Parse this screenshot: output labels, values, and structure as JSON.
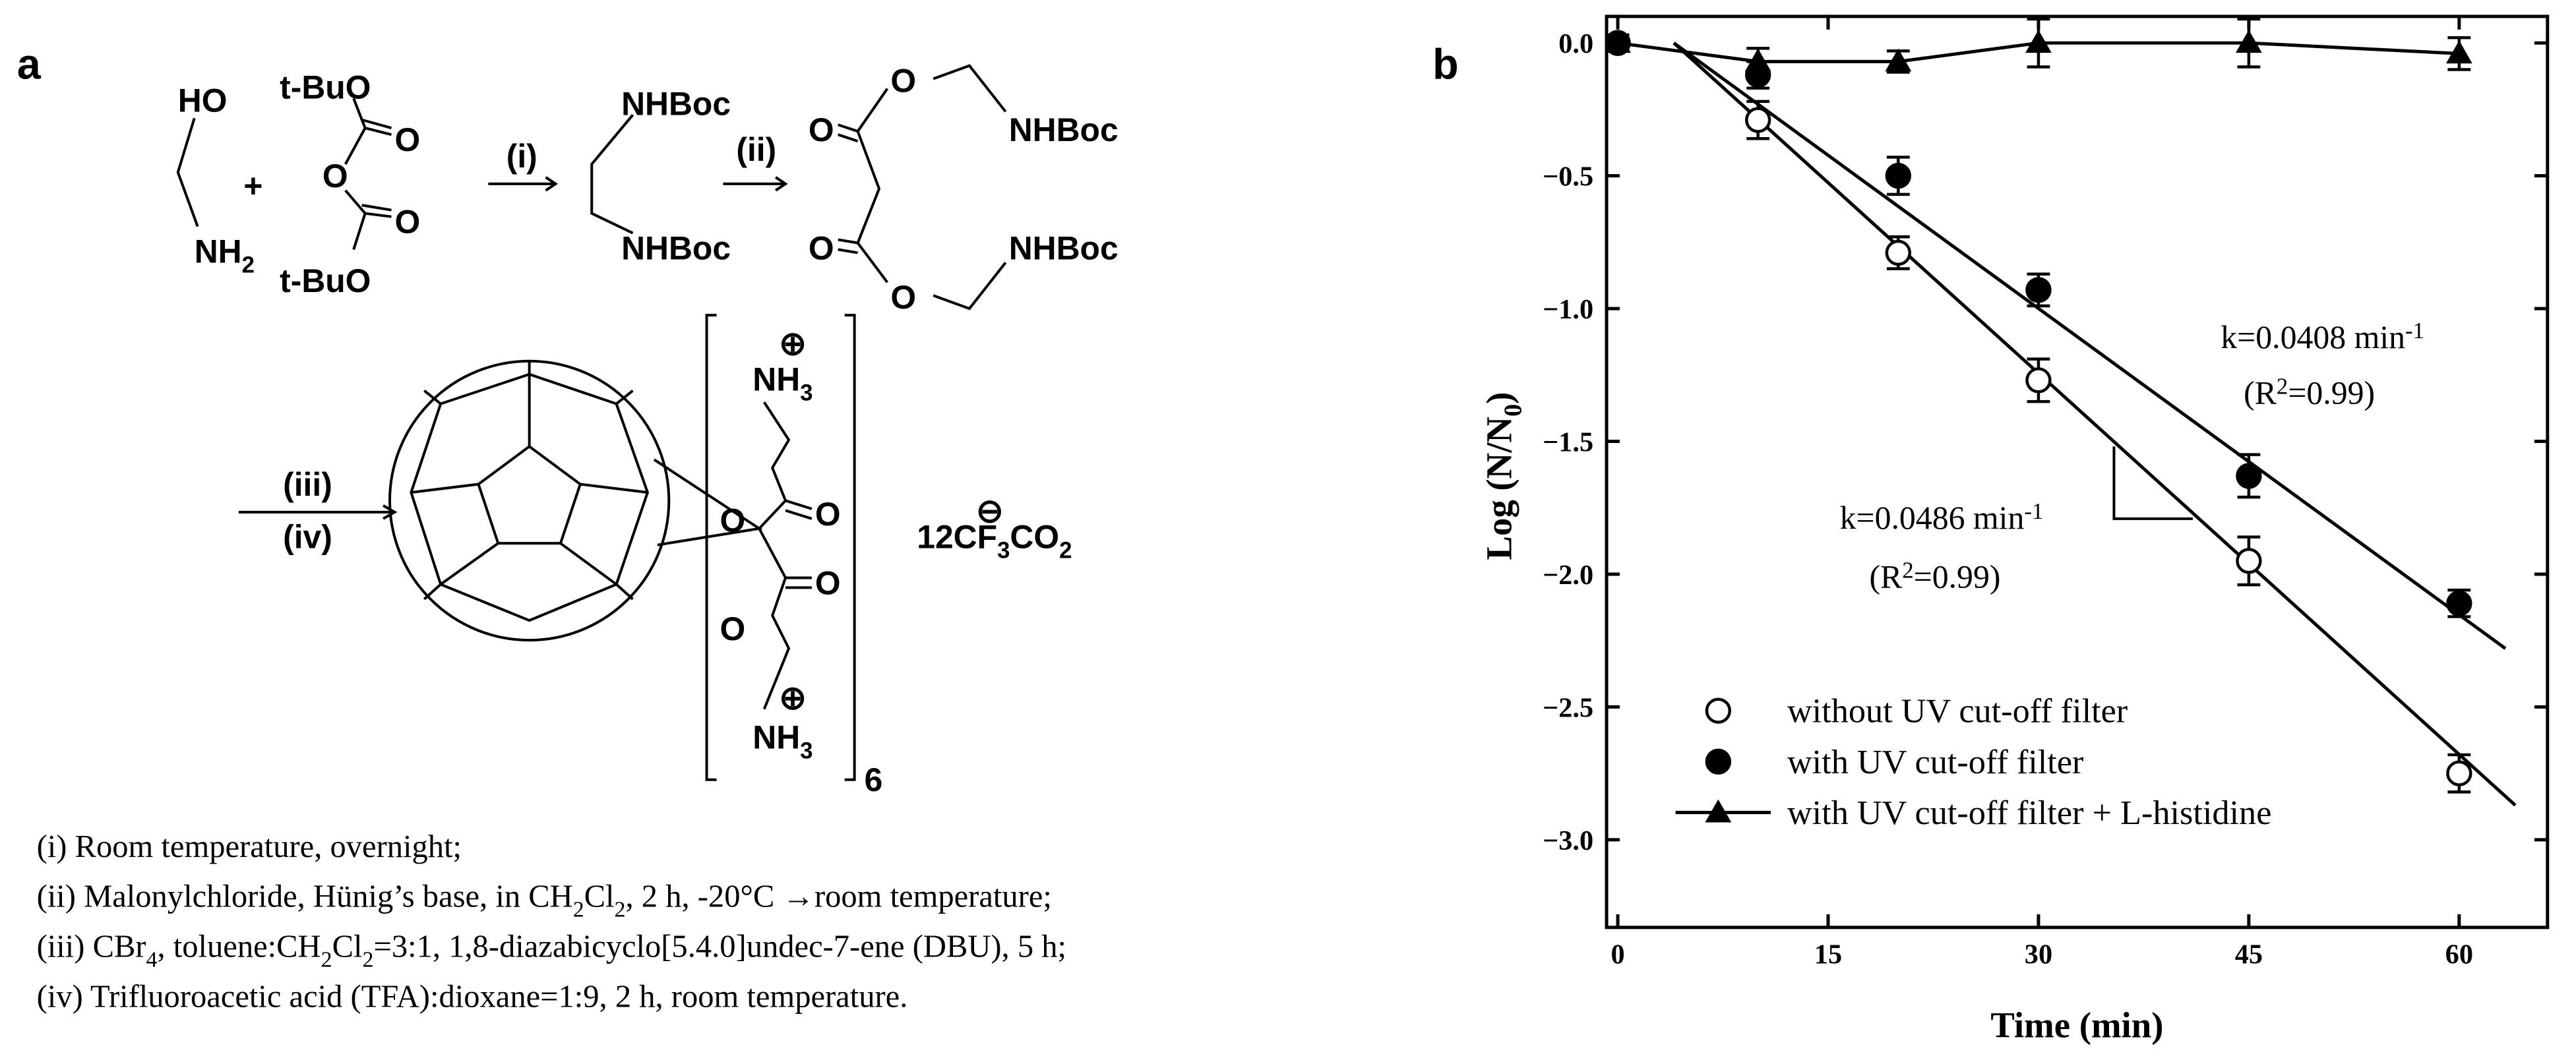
{
  "panel_a": {
    "label": "a",
    "plus": "+",
    "steps": [
      "(i)",
      "(ii)",
      "(iii)",
      "(iv)"
    ],
    "charges": [
      "⊕",
      "⊕",
      "⊖"
    ],
    "bracket_count": "6",
    "formulas": [
      [
        "HO"
      ],
      [
        "NH",
        "2"
      ],
      [
        "t-BuO"
      ],
      [
        "O"
      ],
      [
        "O"
      ],
      [
        "O"
      ],
      [
        "t-BuO"
      ],
      [
        "NHBoc"
      ],
      [
        "NHBoc"
      ],
      [
        "O"
      ],
      [
        "O"
      ],
      [
        "NHBoc"
      ],
      [
        "O"
      ],
      [
        "O"
      ],
      [
        "NHBoc"
      ],
      [
        "NH",
        "3"
      ],
      [
        "O"
      ],
      [
        "O"
      ],
      [
        "O"
      ],
      [
        "O"
      ],
      [
        "NH",
        "3"
      ],
      [
        "12CF",
        "3",
        "CO",
        "2"
      ]
    ],
    "conditions": [
      [
        "(i) Room temperature, overnight;"
      ],
      [
        "(ii) Malonylchloride, Hünig’s base, in CH",
        "2",
        "Cl",
        "2",
        ", 2 h, -20°C →room temperature;"
      ],
      [
        "(iii) CBr",
        "4",
        ", toluene:CH",
        "2",
        "Cl",
        "2",
        "=3:1, 1,8-diazabicyclo[5.4.0]undec-7-ene (DBU), 5 h;"
      ],
      [
        "(iv) Trifluoroacetic acid (TFA):dioxane=1:9, 2 h, room temperature."
      ]
    ]
  },
  "chart_data": {
    "type": "scatter",
    "label": "b",
    "x_label": "Time (min)",
    "y_label": [
      "Log (N/N",
      "0",
      ")"
    ],
    "xlim": [
      -0.8,
      66.3
    ],
    "ylim": [
      -3.33,
      0.1
    ],
    "xticks": [
      0,
      15,
      30,
      45,
      60
    ],
    "yticks": [
      {
        "value": 0,
        "label": "0.0"
      },
      {
        "value": -0.5,
        "label": "−0.5"
      },
      {
        "value": -1,
        "label": "−1.0"
      },
      {
        "value": -1.5,
        "label": "−1.5"
      },
      {
        "value": -2,
        "label": "−2.0"
      },
      {
        "value": -2.5,
        "label": "−2.5"
      },
      {
        "value": -3,
        "label": "−3.0"
      }
    ],
    "x": [
      0,
      10,
      20,
      30,
      45,
      60
    ],
    "series": [
      {
        "name": "without UV cut-off filter",
        "marker": "open-circle",
        "color": "#000000",
        "values": [
          0,
          -0.29,
          -0.79,
          -1.27,
          -1.95,
          -2.75
        ],
        "errors": [
          0.03,
          0.07,
          0.06,
          0.08,
          0.09,
          0.07
        ],
        "fit": {
          "x": [
            4,
            64
          ],
          "y": [
            0,
            -2.87
          ]
        }
      },
      {
        "name": "with UV cut-off filter",
        "marker": "filled-circle",
        "color": "#000000",
        "values": [
          0,
          -0.12,
          -0.5,
          -0.93,
          -1.63,
          -2.11
        ],
        "errors": [
          0.03,
          0.05,
          0.07,
          0.06,
          0.08,
          0.05
        ],
        "fit": {
          "x": [
            4,
            63.3
          ],
          "y": [
            0,
            -2.28
          ]
        }
      },
      {
        "name": "with UV cut-off filter + L-histidine",
        "marker": "triangle",
        "connected": true,
        "color": "#000000",
        "values": [
          0,
          -0.07,
          -0.07,
          0,
          0,
          -0.04
        ],
        "errors": [
          0.03,
          0.05,
          0.04,
          0.09,
          0.09,
          0.06
        ]
      }
    ],
    "annotations": [
      {
        "parts": [
          "k=0.0408 min",
          "-1"
        ]
      },
      {
        "parts": [
          "(R",
          "2",
          "=0.99)"
        ]
      },
      {
        "parts": [
          "k=0.0486 min",
          "-1"
        ]
      },
      {
        "parts": [
          "(R",
          "2",
          "=0.99)"
        ]
      }
    ]
  }
}
